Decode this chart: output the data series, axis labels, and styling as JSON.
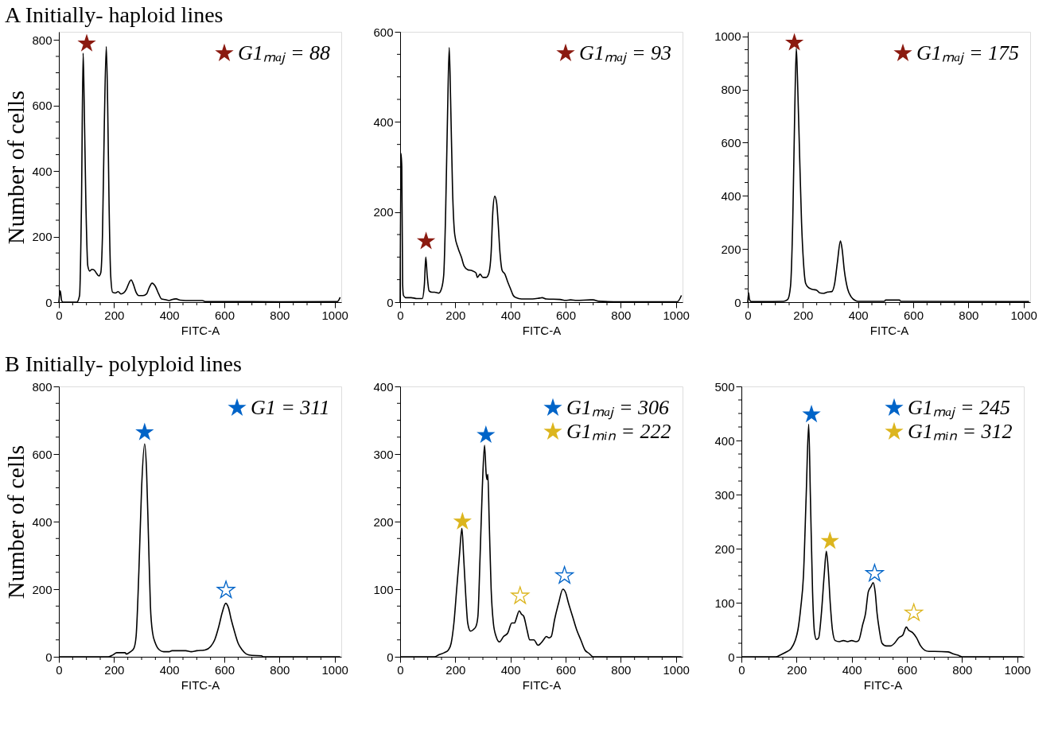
{
  "chart_data": [
    {
      "type": "line",
      "title": "A  Initially- haploid lines",
      "xlabel": "FITC-A",
      "ylabel": "Number of cells",
      "xlim": [
        0,
        1024
      ],
      "ylim": [
        0,
        825
      ],
      "grid": false,
      "legend": "top right",
      "xticks": [
        0,
        {
          "value": 50,
          "label": null
        },
        {
          "value": 100,
          "label": null
        },
        {
          "value": 150,
          "label": null
        },
        200,
        {
          "value": 250,
          "label": null
        },
        {
          "value": 300,
          "label": null
        },
        {
          "value": 350,
          "label": null
        },
        400,
        {
          "value": 450,
          "label": null
        },
        {
          "value": 500,
          "label": null
        },
        {
          "value": 550,
          "label": null
        },
        600,
        {
          "value": 650,
          "label": null
        },
        {
          "value": 700,
          "label": null
        },
        {
          "value": 750,
          "label": null
        },
        800,
        {
          "value": 850,
          "label": null
        },
        {
          "value": 900,
          "label": null
        },
        {
          "value": 950,
          "label": null
        },
        1000
      ],
      "yticks": [
        0,
        {
          "value": 50,
          "label": null
        },
        {
          "value": 100,
          "label": null
        },
        {
          "value": 150,
          "label": null
        },
        200,
        {
          "value": 250,
          "label": null
        },
        {
          "value": 300,
          "label": null
        },
        {
          "value": 350,
          "label": null
        },
        400,
        {
          "value": 450,
          "label": null
        },
        {
          "value": 500,
          "label": null
        },
        {
          "value": 550,
          "label": null
        },
        600,
        {
          "value": 650,
          "label": null
        },
        {
          "value": 700,
          "label": null
        },
        {
          "value": 750,
          "label": null
        },
        800
      ],
      "series": [
        {
          "color": "#000000",
          "x": [
            0,
            5,
            10,
            15,
            65,
            75,
            82,
            88,
            92,
            98,
            105,
            112,
            120,
            128,
            135,
            145,
            152,
            158,
            165,
            172,
            177,
            182,
            188,
            195,
            205,
            215,
            225,
            235,
            245,
            255,
            262,
            270,
            280,
            290,
            305,
            318,
            328,
            338,
            350,
            362,
            372,
            385,
            400,
            410,
            425,
            440,
            460,
            520,
            530,
            600,
            800,
            1010,
            1020
          ],
          "values": [
            0,
            35,
            5,
            0,
            0,
            20,
            300,
            760,
            600,
            300,
            110,
            95,
            100,
            98,
            90,
            80,
            90,
            200,
            550,
            780,
            600,
            300,
            80,
            30,
            28,
            32,
            25,
            28,
            40,
            60,
            68,
            55,
            30,
            20,
            20,
            25,
            45,
            58,
            48,
            25,
            10,
            8,
            5,
            8,
            10,
            6,
            5,
            5,
            2,
            2,
            1,
            2,
            15
          ]
        },
        {
          "type": "scatter",
          "marker": "star",
          "name": "G1ₘₐⱼ = 88",
          "color": "#8b1a10",
          "x": [
            101
          ],
          "values": [
            789
          ]
        }
      ]
    },
    {
      "type": "line",
      "xlabel": "FITC-A",
      "xlim": [
        0,
        1024
      ],
      "ylim": [
        0,
        600
      ],
      "grid": false,
      "legend": "top right",
      "xticks": [
        0,
        {
          "value": 50,
          "label": null
        },
        {
          "value": 100,
          "label": null
        },
        {
          "value": 150,
          "label": null
        },
        200,
        {
          "value": 250,
          "label": null
        },
        {
          "value": 300,
          "label": null
        },
        {
          "value": 350,
          "label": null
        },
        400,
        {
          "value": 450,
          "label": null
        },
        {
          "value": 500,
          "label": null
        },
        {
          "value": 550,
          "label": null
        },
        600,
        {
          "value": 650,
          "label": null
        },
        {
          "value": 700,
          "label": null
        },
        {
          "value": 750,
          "label": null
        },
        800,
        {
          "value": 850,
          "label": null
        },
        {
          "value": 900,
          "label": null
        },
        {
          "value": 950,
          "label": null
        },
        1000
      ],
      "yticks": [
        0,
        {
          "value": 50,
          "label": null
        },
        {
          "value": 100,
          "label": null
        },
        {
          "value": 150,
          "label": null
        },
        200,
        {
          "value": 250,
          "label": null
        },
        {
          "value": 300,
          "label": null
        },
        {
          "value": 350,
          "label": null
        },
        400,
        {
          "value": 450,
          "label": null
        },
        {
          "value": 500,
          "label": null
        },
        {
          "value": 550,
          "label": null
        },
        600
      ],
      "series": [
        {
          "color": "#000000",
          "x": [
            0,
            3,
            6,
            9,
            12,
            20,
            40,
            60,
            80,
            88,
            93,
            98,
            105,
            115,
            125,
            140,
            150,
            158,
            165,
            172,
            178,
            183,
            190,
            198,
            210,
            222,
            232,
            245,
            260,
            275,
            280,
            290,
            300,
            312,
            322,
            330,
            336,
            343,
            350,
            355,
            362,
            370,
            380,
            390,
            400,
            410,
            420,
            440,
            480,
            505,
            515,
            530,
            580,
            600,
            618,
            640,
            690,
            700,
            720,
            800,
            1005,
            1020
          ],
          "values": [
            0,
            330,
            300,
            40,
            15,
            10,
            10,
            8,
            8,
            40,
            100,
            60,
            25,
            22,
            22,
            20,
            30,
            60,
            200,
            420,
            565,
            450,
            250,
            150,
            120,
            100,
            80,
            72,
            70,
            65,
            55,
            62,
            55,
            55,
            65,
            110,
            200,
            235,
            220,
            180,
            110,
            70,
            62,
            45,
            30,
            15,
            10,
            7,
            7,
            9,
            10,
            7,
            6,
            4,
            5,
            4,
            5,
            5,
            2,
            1,
            1,
            15
          ]
        },
        {
          "type": "scatter",
          "marker": "star",
          "name": "G1ₘₐⱼ = 93",
          "color": "#8b1a10",
          "x": [
            94
          ],
          "values": [
            135
          ]
        }
      ]
    },
    {
      "type": "line",
      "xlabel": "FITC-A",
      "xlim": [
        0,
        1024
      ],
      "ylim": [
        0,
        1017
      ],
      "grid": false,
      "legend": "top right",
      "xticks": [
        0,
        {
          "value": 50,
          "label": null
        },
        {
          "value": 100,
          "label": null
        },
        {
          "value": 150,
          "label": null
        },
        200,
        {
          "value": 250,
          "label": null
        },
        {
          "value": 300,
          "label": null
        },
        {
          "value": 350,
          "label": null
        },
        400,
        {
          "value": 450,
          "label": null
        },
        {
          "value": 500,
          "label": null
        },
        {
          "value": 550,
          "label": null
        },
        600,
        {
          "value": 650,
          "label": null
        },
        {
          "value": 700,
          "label": null
        },
        {
          "value": 750,
          "label": null
        },
        800,
        {
          "value": 850,
          "label": null
        },
        {
          "value": 900,
          "label": null
        },
        {
          "value": 950,
          "label": null
        },
        1000
      ],
      "yticks": [
        0,
        {
          "value": 50,
          "label": null
        },
        {
          "value": 100,
          "label": null
        },
        {
          "value": 150,
          "label": null
        },
        200,
        {
          "value": 250,
          "label": null
        },
        {
          "value": 300,
          "label": null
        },
        {
          "value": 350,
          "label": null
        },
        400,
        {
          "value": 450,
          "label": null
        },
        {
          "value": 500,
          "label": null
        },
        {
          "value": 550,
          "label": null
        },
        600,
        {
          "value": 650,
          "label": null
        },
        {
          "value": 700,
          "label": null
        },
        {
          "value": 750,
          "label": null
        },
        800,
        {
          "value": 850,
          "label": null
        },
        {
          "value": 900,
          "label": null
        },
        {
          "value": 950,
          "label": null
        },
        1000
      ],
      "series": [
        {
          "color": "#000000",
          "x": [
            0,
            3,
            6,
            12,
            50,
            130,
            145,
            155,
            163,
            170,
            176,
            180,
            188,
            195,
            202,
            210,
            220,
            235,
            250,
            260,
            275,
            290,
            305,
            315,
            325,
            336,
            342,
            350,
            362,
            375,
            390,
            400,
            495,
            500,
            550,
            555,
            1020
          ],
          "values": [
            0,
            35,
            10,
            2,
            2,
            3,
            10,
            60,
            300,
            700,
            955,
            850,
            550,
            300,
            150,
            70,
            55,
            48,
            45,
            35,
            33,
            38,
            40,
            70,
            150,
            230,
            200,
            120,
            50,
            20,
            6,
            3,
            3,
            8,
            8,
            3,
            2
          ]
        },
        {
          "type": "scatter",
          "marker": "star",
          "name": "G1ₘₐⱼ = 175",
          "color": "#8b1a10",
          "x": [
            169
          ],
          "values": [
            976
          ]
        }
      ]
    },
    {
      "type": "line",
      "title": "B  Initially- polyploid  lines",
      "xlabel": "FITC-A",
      "ylabel": "Number of cells",
      "xlim": [
        0,
        1024
      ],
      "ylim": [
        0,
        800
      ],
      "grid": false,
      "legend": "top right",
      "xticks": [
        0,
        {
          "value": 50,
          "label": null
        },
        {
          "value": 100,
          "label": null
        },
        {
          "value": 150,
          "label": null
        },
        200,
        {
          "value": 250,
          "label": null
        },
        {
          "value": 300,
          "label": null
        },
        {
          "value": 350,
          "label": null
        },
        400,
        {
          "value": 450,
          "label": null
        },
        {
          "value": 500,
          "label": null
        },
        {
          "value": 550,
          "label": null
        },
        600,
        {
          "value": 650,
          "label": null
        },
        {
          "value": 700,
          "label": null
        },
        {
          "value": 750,
          "label": null
        },
        800,
        {
          "value": 850,
          "label": null
        },
        {
          "value": 900,
          "label": null
        },
        {
          "value": 950,
          "label": null
        },
        1000
      ],
      "yticks": [
        0,
        {
          "value": 50,
          "label": null
        },
        {
          "value": 100,
          "label": null
        },
        {
          "value": 150,
          "label": null
        },
        200,
        {
          "value": 250,
          "label": null
        },
        {
          "value": 300,
          "label": null
        },
        {
          "value": 350,
          "label": null
        },
        400,
        {
          "value": 450,
          "label": null
        },
        {
          "value": 500,
          "label": null
        },
        {
          "value": 550,
          "label": null
        },
        600,
        {
          "value": 650,
          "label": null
        },
        {
          "value": 700,
          "label": null
        },
        {
          "value": 750,
          "label": null
        },
        800
      ],
      "series": [
        {
          "color": "#000000",
          "x": [
            0,
            180,
            195,
            210,
            240,
            245,
            260,
            272,
            280,
            290,
            300,
            311,
            318,
            325,
            332,
            340,
            350,
            365,
            380,
            400,
            410,
            460,
            480,
            500,
            530,
            550,
            565,
            580,
            592,
            605,
            615,
            625,
            635,
            650,
            665,
            680,
            700,
            735,
            740,
            1020
          ],
          "values": [
            0,
            0,
            5,
            12,
            12,
            8,
            15,
            25,
            60,
            250,
            500,
            630,
            550,
            350,
            150,
            70,
            40,
            20,
            15,
            15,
            18,
            18,
            15,
            18,
            20,
            30,
            50,
            90,
            130,
            158,
            145,
            110,
            80,
            40,
            20,
            8,
            4,
            3,
            0,
            0
          ]
        },
        {
          "type": "scatter",
          "marker": "star",
          "name": "G1 = 311",
          "color": "#0064c8",
          "x": [
            311
          ],
          "values": [
            664
          ]
        },
        {
          "type": "scatter",
          "marker": "star",
          "color": "#0064c8",
          "x": [
            606
          ],
          "values": [
            197
          ]
        }
      ]
    },
    {
      "type": "line",
      "xlabel": "FITC-A",
      "xlim": [
        0,
        1024
      ],
      "ylim": [
        0,
        400
      ],
      "grid": false,
      "legend": "top right",
      "xticks": [
        0,
        {
          "value": 50,
          "label": null
        },
        {
          "value": 100,
          "label": null
        },
        {
          "value": 150,
          "label": null
        },
        200,
        {
          "value": 250,
          "label": null
        },
        {
          "value": 300,
          "label": null
        },
        {
          "value": 350,
          "label": null
        },
        400,
        {
          "value": 450,
          "label": null
        },
        {
          "value": 500,
          "label": null
        },
        {
          "value": 550,
          "label": null
        },
        600,
        {
          "value": 650,
          "label": null
        },
        {
          "value": 700,
          "label": null
        },
        {
          "value": 750,
          "label": null
        },
        800,
        {
          "value": 850,
          "label": null
        },
        {
          "value": 900,
          "label": null
        },
        {
          "value": 950,
          "label": null
        },
        1000
      ],
      "yticks": [
        0,
        {
          "value": 25,
          "label": null
        },
        {
          "value": 50,
          "label": null
        },
        {
          "value": 75,
          "label": null
        },
        100,
        {
          "value": 125,
          "label": null
        },
        {
          "value": 150,
          "label": null
        },
        {
          "value": 175,
          "label": null
        },
        200,
        {
          "value": 225,
          "label": null
        },
        {
          "value": 250,
          "label": null
        },
        {
          "value": 275,
          "label": null
        },
        300,
        {
          "value": 325,
          "label": null
        },
        {
          "value": 350,
          "label": null
        },
        {
          "value": 375,
          "label": null
        },
        400
      ],
      "series": [
        {
          "color": "#000000",
          "x": [
            0,
            125,
            140,
            160,
            175,
            185,
            195,
            205,
            215,
            224,
            230,
            238,
            245,
            255,
            265,
            275,
            282,
            290,
            298,
            306,
            312,
            315,
            318,
            323,
            330,
            338,
            348,
            360,
            375,
            390,
            405,
            415,
            420,
            432,
            440,
            448,
            460,
            470,
            485,
            500,
            510,
            520,
            530,
            540,
            548,
            560,
            575,
            590,
            600,
            610,
            625,
            640,
            655,
            670,
            685,
            700,
            1020
          ],
          "values": [
            0,
            0,
            3,
            6,
            10,
            20,
            50,
            100,
            150,
            190,
            150,
            90,
            50,
            38,
            40,
            45,
            60,
            150,
            250,
            313,
            270,
            262,
            270,
            200,
            100,
            50,
            30,
            22,
            30,
            35,
            50,
            50,
            55,
            68,
            63,
            60,
            40,
            25,
            25,
            17,
            20,
            25,
            30,
            28,
            30,
            55,
            80,
            100,
            95,
            80,
            60,
            40,
            25,
            10,
            5,
            0,
            0
          ]
        },
        {
          "type": "scatter",
          "marker": "star",
          "name": "G1ₘₐⱼ = 306",
          "color": "#0064c8",
          "x": [
            311
          ],
          "values": [
            328
          ]
        },
        {
          "type": "scatter",
          "marker": "star",
          "name": "G1ₘᵢₙ = 222",
          "color": "#dcb51e",
          "x": [
            226
          ],
          "values": [
            200
          ]
        },
        {
          "type": "scatter",
          "marker": "star",
          "color": "#dcb51e",
          "x": [
            435
          ],
          "values": [
            90
          ]
        },
        {
          "type": "scatter",
          "marker": "star",
          "color": "#0064c8",
          "x": [
            596
          ],
          "values": [
            120
          ]
        }
      ]
    },
    {
      "type": "line",
      "xlabel": "FITC-A",
      "xlim": [
        0,
        1024
      ],
      "ylim": [
        0,
        500
      ],
      "grid": false,
      "legend": "top right",
      "xticks": [
        0,
        {
          "value": 50,
          "label": null
        },
        {
          "value": 100,
          "label": null
        },
        {
          "value": 150,
          "label": null
        },
        200,
        {
          "value": 250,
          "label": null
        },
        {
          "value": 300,
          "label": null
        },
        {
          "value": 350,
          "label": null
        },
        400,
        {
          "value": 450,
          "label": null
        },
        {
          "value": 500,
          "label": null
        },
        {
          "value": 550,
          "label": null
        },
        600,
        {
          "value": 650,
          "label": null
        },
        {
          "value": 700,
          "label": null
        },
        {
          "value": 750,
          "label": null
        },
        800,
        {
          "value": 850,
          "label": null
        },
        {
          "value": 900,
          "label": null
        },
        {
          "value": 950,
          "label": null
        },
        1000
      ],
      "yticks": [
        0,
        {
          "value": 25,
          "label": null
        },
        {
          "value": 50,
          "label": null
        },
        {
          "value": 75,
          "label": null
        },
        100,
        {
          "value": 125,
          "label": null
        },
        {
          "value": 150,
          "label": null
        },
        {
          "value": 175,
          "label": null
        },
        200,
        {
          "value": 225,
          "label": null
        },
        {
          "value": 250,
          "label": null
        },
        {
          "value": 275,
          "label": null
        },
        300,
        {
          "value": 325,
          "label": null
        },
        {
          "value": 350,
          "label": null
        },
        {
          "value": 375,
          "label": null
        },
        400,
        {
          "value": 425,
          "label": null
        },
        {
          "value": 450,
          "label": null
        },
        {
          "value": 475,
          "label": null
        },
        500
      ],
      "series": [
        {
          "color": "#000000",
          "x": [
            0,
            125,
            140,
            160,
            180,
            195,
            205,
            215,
            225,
            235,
            244,
            250,
            258,
            265,
            272,
            280,
            290,
            300,
            308,
            315,
            322,
            330,
            340,
            355,
            370,
            385,
            400,
            415,
            425,
            440,
            450,
            460,
            470,
            478,
            485,
            492,
            500,
            510,
            525,
            540,
            555,
            570,
            585,
            598,
            605,
            620,
            635,
            650,
            665,
            680,
            700,
            750,
            770,
            790,
            800,
            1020
          ],
          "values": [
            0,
            0,
            3,
            8,
            15,
            30,
            50,
            90,
            150,
            300,
            430,
            300,
            120,
            45,
            32,
            35,
            80,
            150,
            195,
            160,
            100,
            50,
            30,
            28,
            30,
            28,
            30,
            28,
            30,
            60,
            80,
            120,
            130,
            137,
            120,
            80,
            50,
            25,
            20,
            20,
            25,
            35,
            40,
            55,
            50,
            45,
            35,
            20,
            12,
            10,
            10,
            9,
            5,
            2,
            0,
            0
          ]
        },
        {
          "type": "scatter",
          "marker": "star",
          "name": "G1ₘₐⱼ = 245",
          "color": "#0064c8",
          "x": [
            254
          ],
          "values": [
            448
          ]
        },
        {
          "type": "scatter",
          "marker": "star",
          "name": "G1ₘᵢₙ = 312",
          "color": "#dcb51e",
          "x": [
            321
          ],
          "values": [
            214
          ]
        },
        {
          "type": "scatter",
          "marker": "star",
          "color": "#0064c8",
          "x": [
            483
          ],
          "values": [
            154
          ]
        },
        {
          "type": "scatter",
          "marker": "star",
          "color": "#dcb51e",
          "x": [
            625
          ],
          "values": [
            81
          ]
        }
      ]
    }
  ]
}
